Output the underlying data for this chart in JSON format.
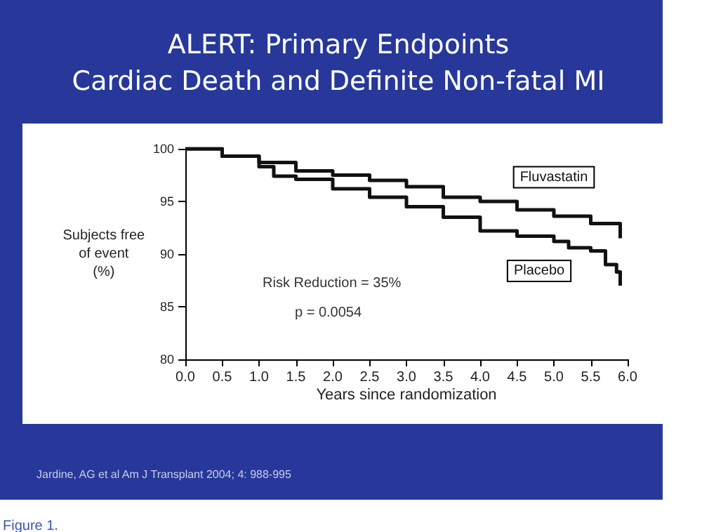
{
  "chart_data": {
    "type": "step",
    "title": "ALERT: Primary Endpoints\nCardiac Death and Definite Non-fatal MI",
    "xlabel": "Years since randomization",
    "ylabel": "Subjects free\nof event\n(%)",
    "series": [
      {
        "name": "Fluvastatin",
        "color": "#111111",
        "x": [
          0,
          0.1,
          0.5,
          1.0,
          1.5,
          2.0,
          2.5,
          3.0,
          3.5,
          4.0,
          4.5,
          5.0,
          5.5,
          5.87,
          5.9
        ],
        "values": [
          100,
          100,
          99.3,
          98.7,
          97.9,
          97.5,
          97.0,
          96.4,
          95.4,
          95.0,
          94.2,
          93.6,
          92.9,
          92.9,
          91.5
        ]
      },
      {
        "name": "Placebo",
        "color": "#111111",
        "x": [
          0,
          0.1,
          0.5,
          1.0,
          1.2,
          1.5,
          2.0,
          2.5,
          3.0,
          3.5,
          4.0,
          4.5,
          5.0,
          5.2,
          5.5,
          5.7,
          5.85,
          5.9
        ],
        "values": [
          100,
          100,
          99.3,
          98.3,
          97.4,
          97.1,
          96.2,
          95.4,
          94.5,
          93.5,
          92.2,
          91.7,
          91.2,
          90.6,
          90.3,
          89.0,
          88.3,
          87.0
        ]
      }
    ],
    "xlim": [
      0,
      6
    ],
    "xticks": [
      {
        "value": 0,
        "label": "0.0"
      },
      {
        "value": 0.5,
        "label": "0.5"
      },
      {
        "value": 1,
        "label": "1.0"
      },
      {
        "value": 1.5,
        "label": "1.5"
      },
      {
        "value": 2,
        "label": "2.0"
      },
      {
        "value": 2.5,
        "label": "2.5"
      },
      {
        "value": 3,
        "label": "3.0"
      },
      {
        "value": 3.5,
        "label": "3.5"
      },
      {
        "value": 4,
        "label": "4.0"
      },
      {
        "value": 4.5,
        "label": "4.5"
      },
      {
        "value": 5,
        "label": "5.0"
      },
      {
        "value": 5.5,
        "label": "5.5"
      },
      {
        "value": 6,
        "label": "6.0"
      }
    ],
    "ylim": [
      80,
      100
    ],
    "yticks": [
      80,
      85,
      90,
      95,
      100
    ],
    "annotations": [
      "Risk Reduction = 35%",
      "p = 0.0054",
      "Jardine, AG et al Am J Transplant 2004; 4: 988-995",
      "Figure 1."
    ],
    "grid": false,
    "legend": false,
    "marker": "none",
    "line_style": "solid"
  }
}
